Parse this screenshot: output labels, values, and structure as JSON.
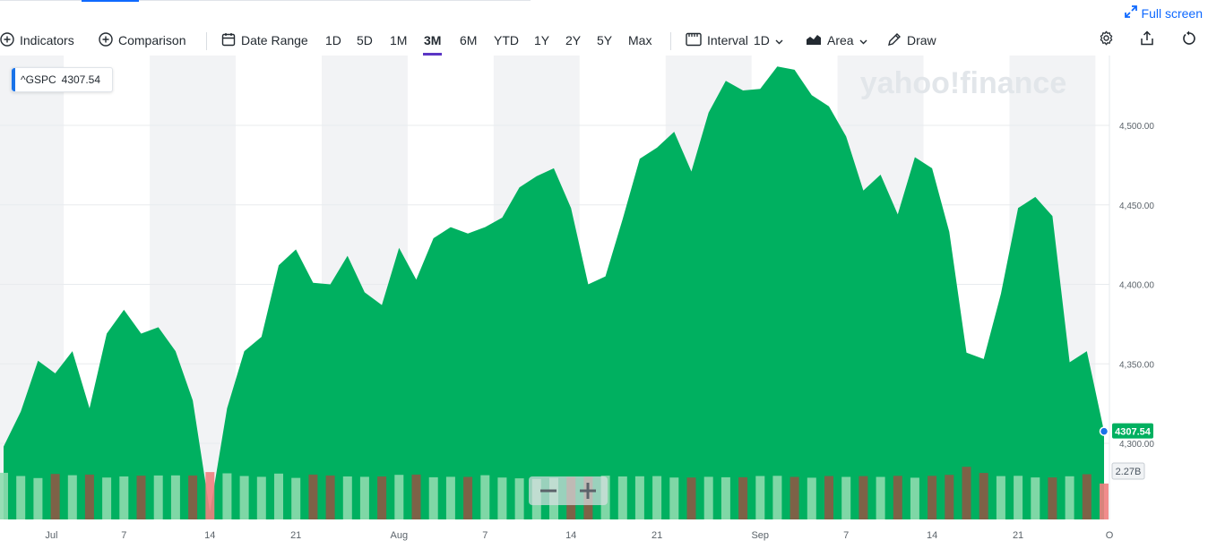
{
  "fullscreen_label": "Full screen",
  "toolbar": {
    "indicators": "Indicators",
    "comparison": "Comparison",
    "date_range": "Date Range",
    "ranges": [
      "1D",
      "5D",
      "1M",
      "3M",
      "6M",
      "YTD",
      "1Y",
      "2Y",
      "5Y",
      "Max"
    ],
    "active_range": "3M",
    "interval_label": "Interval",
    "interval_value": "1D",
    "chart_type": "Area",
    "draw": "Draw"
  },
  "ticker": {
    "symbol": "^GSPC",
    "price": "4307.54"
  },
  "watermark": "yahoo!finance",
  "zoom": {
    "minus": "−",
    "plus": "+"
  },
  "chart_data": {
    "type": "area",
    "symbol": "^GSPC",
    "x_ticks": [
      "Jul",
      "7",
      "14",
      "21",
      "Aug",
      "7",
      "14",
      "21",
      "Sep",
      "7",
      "14",
      "21",
      "O"
    ],
    "y_ticks": [
      "4,300.00",
      "4,350.00",
      "4,400.00",
      "4,450.00",
      "4,500.00"
    ],
    "ylim": [
      4240,
      4550
    ],
    "last_price_label": "4307.54",
    "last_volume_label": "2.27B",
    "close": [
      4298,
      4320,
      4352,
      4344,
      4358,
      4322,
      4369,
      4384,
      4369,
      4373,
      4358,
      4327,
      4257,
      4322,
      4358,
      4367,
      4412,
      4422,
      4401,
      4400,
      4418,
      4395,
      4387,
      4423,
      4403,
      4429,
      4436,
      4432,
      4436,
      4442,
      4461,
      4468,
      4473,
      4448,
      4400,
      4405,
      4441,
      4479,
      4486,
      4496,
      4471,
      4508,
      4528,
      4522,
      4523,
      4537,
      4535,
      4519,
      4512,
      4493,
      4459,
      4469,
      4444,
      4480,
      4473,
      4433,
      4357,
      4353,
      4394,
      4448,
      4455,
      4443,
      4351,
      4358,
      4307.54
    ],
    "volume_up": [
      true,
      true,
      true,
      false,
      true,
      false,
      true,
      true,
      false,
      true,
      true,
      false,
      false,
      true,
      true,
      true,
      true,
      true,
      false,
      false,
      true,
      true,
      false,
      true,
      false,
      true,
      true,
      false,
      true,
      true,
      true,
      true,
      true,
      false,
      false,
      true,
      true,
      true,
      true,
      true,
      false,
      true,
      true,
      false,
      true,
      true,
      false,
      true,
      false,
      true,
      false,
      true,
      false,
      true,
      false,
      false,
      false,
      false,
      true,
      true,
      true,
      false,
      true,
      false,
      false
    ],
    "volume": [
      2.95,
      2.75,
      2.62,
      2.88,
      2.8,
      2.84,
      2.65,
      2.72,
      2.77,
      2.78,
      2.79,
      2.78,
      3.0,
      2.92,
      2.75,
      2.7,
      2.9,
      2.63,
      2.84,
      2.78,
      2.72,
      2.7,
      2.72,
      2.82,
      2.84,
      2.67,
      2.7,
      2.69,
      2.8,
      2.65,
      2.6,
      2.56,
      2.63,
      2.69,
      2.71,
      2.77,
      2.72,
      2.73,
      2.74,
      2.65,
      2.65,
      2.7,
      2.67,
      2.67,
      2.75,
      2.76,
      2.69,
      2.64,
      2.75,
      2.69,
      2.74,
      2.69,
      2.76,
      2.64,
      2.76,
      2.82,
      3.33,
      2.94,
      2.74,
      2.76,
      2.66,
      2.66,
      2.73,
      2.86,
      2.27
    ]
  }
}
